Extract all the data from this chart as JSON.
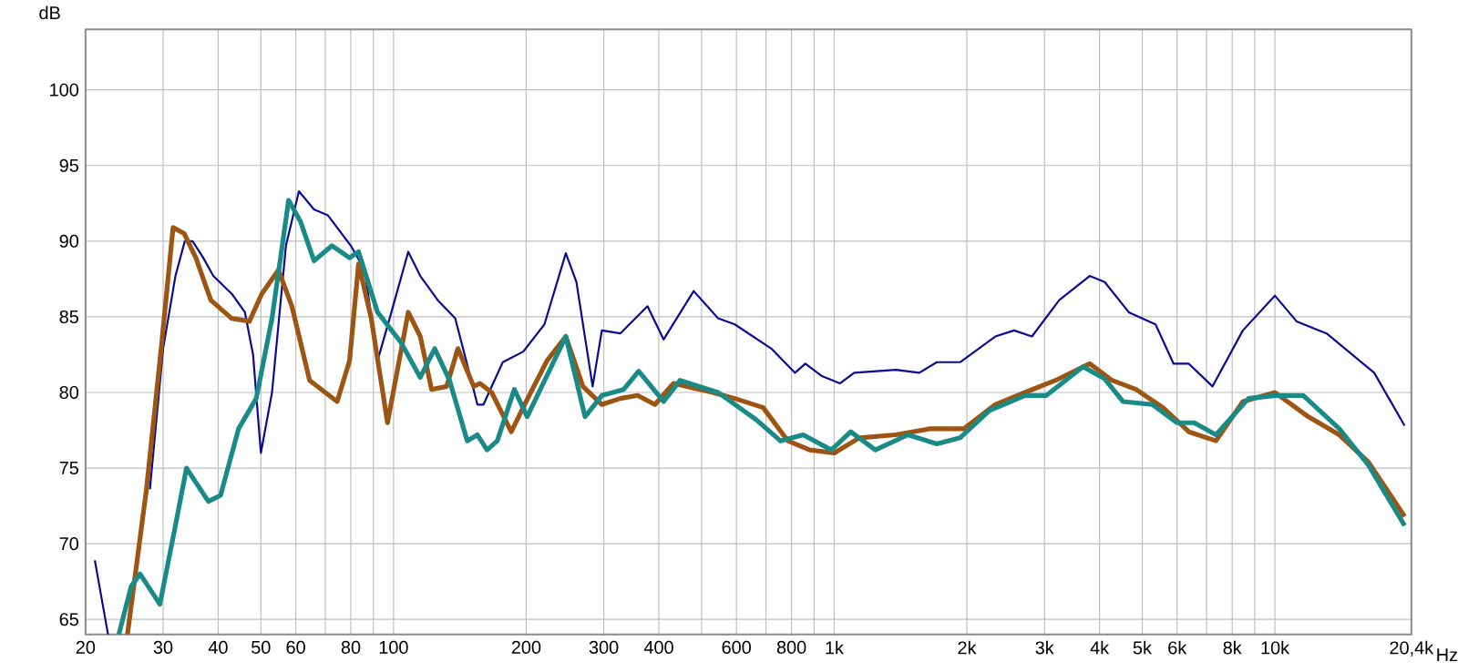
{
  "chart_data": {
    "type": "line",
    "ylabel": "dB",
    "log": "x",
    "grid": true,
    "xlim": [
      20,
      20400
    ],
    "ylim": [
      64,
      104
    ],
    "yticks": [
      65,
      70,
      75,
      80,
      85,
      90,
      95,
      100
    ],
    "xticks": [
      20,
      30,
      40,
      50,
      60,
      {
        "value": 70,
        "label": null
      },
      80,
      {
        "value": 90,
        "label": null
      },
      100,
      200,
      300,
      400,
      {
        "value": 500,
        "label": null
      },
      600,
      {
        "value": 700,
        "label": null
      },
      800,
      {
        "value": 900,
        "label": null
      },
      {
        "value": 1000,
        "label": "1k"
      },
      {
        "value": 2000,
        "label": "2k"
      },
      {
        "value": 3000,
        "label": "3k"
      },
      {
        "value": 4000,
        "label": "4k"
      },
      {
        "value": 5000,
        "label": "5k"
      },
      {
        "value": 6000,
        "label": "6k"
      },
      {
        "value": 7000,
        "label": null
      },
      {
        "value": 8000,
        "label": "8k"
      },
      {
        "value": 9000,
        "label": null
      },
      {
        "value": 10000,
        "label": "10k"
      },
      {
        "value": 20400,
        "label": "20,4k"
      }
    ],
    "xlabel": "Hz",
    "series": [
      {
        "color": "#0a0a96",
        "x": [
          21,
          22.5,
          26.5,
          28,
          30,
          32,
          33.6,
          35,
          37,
          39,
          43,
          46,
          48,
          50,
          53,
          57,
          61,
          66,
          71,
          80,
          86,
          92,
          98,
          108,
          115,
          126,
          138,
          145,
          155,
          160,
          177,
          197,
          220,
          246,
          260,
          283,
          297,
          327,
          377,
          410,
          480,
          545,
          595,
          720,
          815,
          860,
          935,
          1030,
          1110,
          1380,
          1560,
          1710,
          1930,
          2320,
          2560,
          2810,
          3240,
          3800,
          4110,
          4660,
          5360,
          5890,
          6380,
          7220,
          8460,
          10000,
          11200,
          13100,
          16800,
          19700
        ],
        "values": [
          68.9,
          64.0,
          null,
          73.6,
          82.9,
          87.7,
          90.0,
          90.0,
          88.9,
          87.7,
          86.5,
          85.3,
          82.5,
          76.0,
          80.0,
          89.7,
          93.3,
          92.1,
          91.7,
          89.7,
          88.1,
          82.1,
          84.9,
          89.3,
          87.7,
          86.1,
          84.9,
          82.5,
          79.2,
          79.2,
          82.0,
          82.7,
          84.5,
          89.2,
          87.3,
          80.4,
          84.1,
          83.9,
          85.7,
          83.5,
          86.7,
          84.9,
          84.5,
          82.9,
          81.3,
          81.9,
          81.1,
          80.6,
          81.3,
          81.5,
          81.3,
          82.0,
          82.0,
          83.7,
          84.1,
          83.7,
          86.1,
          87.7,
          87.3,
          85.3,
          84.5,
          81.9,
          81.9,
          80.4,
          84.1,
          86.4,
          84.7,
          83.9,
          81.3,
          77.8
        ]
      },
      {
        "color": "#9c5512",
        "x": [
          24.9,
          27.5,
          29.7,
          31.6,
          33.5,
          35.6,
          38.5,
          42.9,
          47.1,
          50.2,
          54.8,
          58.8,
          64.5,
          70,
          74.5,
          79.5,
          83.3,
          89,
          96.9,
          108,
          115,
          122,
          132,
          140,
          152,
          157,
          167,
          185,
          200,
          223,
          246,
          269,
          297,
          327,
          358,
          392,
          432,
          530,
          595,
          690,
          785,
          880,
          1000,
          1140,
          1380,
          1650,
          1970,
          2320,
          2710,
          3180,
          3800,
          4270,
          4840,
          5570,
          6380,
          7350,
          8460,
          10000,
          11900,
          14000,
          16300,
          19700
        ],
        "values": [
          64.0,
          73.6,
          82.9,
          90.9,
          90.5,
          88.9,
          86.1,
          84.9,
          84.7,
          86.5,
          88.1,
          85.7,
          80.8,
          80.0,
          79.4,
          82.1,
          88.5,
          84.9,
          78.0,
          85.3,
          83.7,
          80.2,
          80.4,
          82.9,
          80.4,
          80.6,
          80.0,
          77.4,
          79.4,
          82.1,
          83.7,
          80.4,
          79.2,
          79.6,
          79.8,
          79.2,
          80.6,
          80.0,
          79.6,
          79.0,
          76.8,
          76.2,
          76.0,
          77.0,
          77.2,
          77.6,
          77.6,
          79.2,
          80.0,
          80.8,
          81.9,
          80.8,
          80.2,
          79.0,
          77.4,
          76.8,
          79.4,
          80.0,
          78.4,
          77.2,
          75.4,
          71.8
        ]
      },
      {
        "color": "#1a8a86",
        "x": [
          23.8,
          25.4,
          26.6,
          29.5,
          31.8,
          33.9,
          38,
          40.5,
          44.5,
          48.8,
          53,
          57.8,
          61.5,
          66,
          72.5,
          79.5,
          83.3,
          92,
          104,
          115,
          124,
          134,
          147,
          155,
          163,
          172,
          188,
          201,
          246,
          272,
          297,
          333,
          360,
          410,
          447,
          545,
          665,
          755,
          850,
          985,
          1090,
          1240,
          1470,
          1710,
          1930,
          2250,
          2710,
          3030,
          3670,
          4110,
          4520,
          5270,
          5990,
          6560,
          7350,
          8710,
          10000,
          11600,
          14000,
          16300,
          19700
        ],
        "values": [
          64.0,
          67.2,
          68.0,
          66.0,
          70.8,
          75.0,
          72.8,
          73.2,
          77.6,
          79.6,
          84.9,
          92.7,
          91.3,
          88.7,
          89.7,
          88.9,
          89.3,
          85.3,
          83.3,
          81.0,
          82.9,
          80.8,
          76.8,
          77.2,
          76.2,
          76.8,
          80.2,
          78.4,
          83.7,
          78.4,
          79.8,
          80.2,
          81.4,
          79.4,
          80.8,
          80.0,
          78.2,
          76.8,
          77.2,
          76.2,
          77.4,
          76.2,
          77.2,
          76.6,
          77.0,
          78.8,
          79.8,
          79.8,
          81.7,
          80.9,
          79.4,
          79.2,
          78.0,
          78.0,
          77.2,
          79.6,
          79.8,
          79.8,
          77.6,
          75.2,
          71.2
        ]
      }
    ]
  }
}
